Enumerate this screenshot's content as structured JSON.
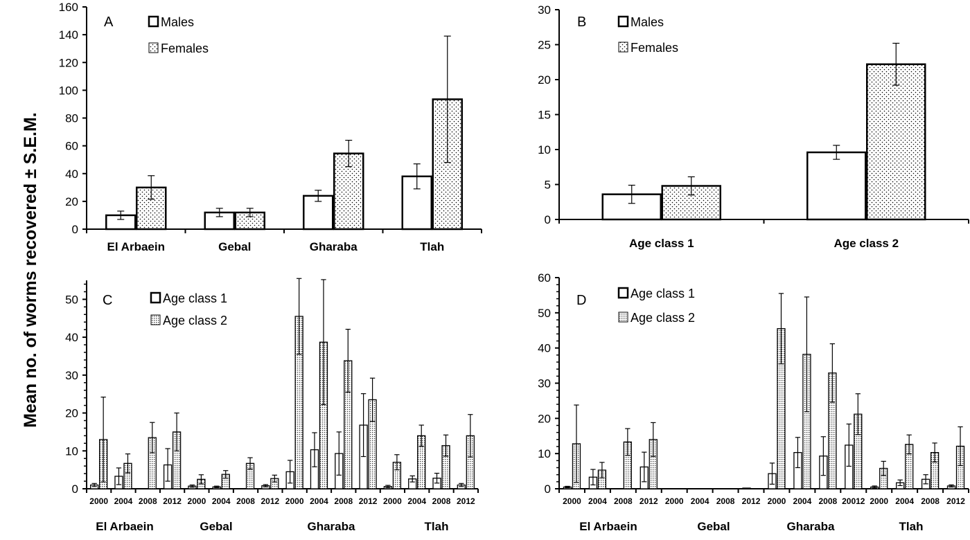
{
  "y_axis_title": "Mean no. of worms recovered ± S.E.M.",
  "chart_data": [
    {
      "panel": "A",
      "type": "bar",
      "ylim": [
        0,
        160
      ],
      "yticks": [
        0,
        20,
        40,
        60,
        80,
        100,
        120,
        140,
        160
      ],
      "categories": [
        "El Arbaein",
        "Gebal",
        "Gharaba",
        "Tlah"
      ],
      "series": [
        {
          "name": "Males",
          "pattern": "empty",
          "values": [
            10,
            12,
            24,
            38
          ],
          "errors": [
            3,
            3,
            4,
            9
          ]
        },
        {
          "name": "Females",
          "pattern": "dots",
          "values": [
            30,
            12,
            54.5,
            93.5
          ],
          "errors": [
            8.5,
            3,
            9.5,
            45.5
          ]
        }
      ]
    },
    {
      "panel": "B",
      "type": "bar",
      "ylim": [
        0,
        30
      ],
      "yticks": [
        0,
        5,
        10,
        15,
        20,
        25,
        30
      ],
      "categories": [
        "Age class 1",
        "Age class 2"
      ],
      "series": [
        {
          "name": "Males",
          "pattern": "empty",
          "values": [
            3.6,
            9.6
          ],
          "errors": [
            1.3,
            1.0
          ]
        },
        {
          "name": "Females",
          "pattern": "dots",
          "values": [
            4.8,
            22.2
          ],
          "errors": [
            1.3,
            3.0
          ]
        }
      ]
    },
    {
      "panel": "C",
      "type": "bar",
      "ylim": [
        0,
        55
      ],
      "yticks": [
        0,
        10,
        20,
        30,
        40,
        50
      ],
      "groups": [
        "El Arbaein",
        "Gebal",
        "Gharaba",
        "Tlah"
      ],
      "categories": [
        "2000",
        "2004",
        "2008",
        "2012",
        "2000",
        "2004",
        "2008",
        "2012",
        "2000",
        "2004",
        "2008",
        "2012",
        "2000",
        "2004",
        "2008",
        "2012"
      ],
      "series": [
        {
          "name": "Age class 1",
          "pattern": "empty",
          "values": [
            1,
            3.3,
            0,
            6.3,
            0.7,
            0.5,
            0,
            0.8,
            4.5,
            10.3,
            9.3,
            16.8,
            0.6,
            2.6,
            2.8,
            1
          ],
          "errors": [
            0.4,
            2.2,
            0,
            4.3,
            0.3,
            0.2,
            0,
            0.3,
            3,
            4.5,
            5.7,
            8.3,
            0.3,
            0.8,
            1.3,
            0.4
          ]
        },
        {
          "name": "Age class 2",
          "pattern": "dense",
          "values": [
            13,
            6.7,
            13.5,
            15,
            2.5,
            3.8,
            6.7,
            2.7,
            45.5,
            38.7,
            33.8,
            23.5,
            7,
            14,
            11.4,
            14
          ],
          "errors": [
            11.2,
            2.5,
            4,
            5,
            1.2,
            1,
            1.5,
            0.9,
            10,
            16.5,
            8.3,
            5.7,
            2,
            2.8,
            2.8,
            5.6
          ]
        }
      ]
    },
    {
      "panel": "D",
      "type": "bar",
      "ylim": [
        0,
        60
      ],
      "yticks": [
        0,
        10,
        20,
        30,
        40,
        50,
        60
      ],
      "groups": [
        "El Arbaein",
        "Gebal",
        "Gharaba",
        "Tlah"
      ],
      "categories": [
        "2000",
        "2004",
        "2008",
        "2012",
        "2000",
        "2004",
        "2008",
        "2012",
        "2000",
        "2004",
        "2008",
        "20012",
        "2000",
        "2004",
        "2008",
        "2012"
      ],
      "series": [
        {
          "name": "Age class 1",
          "pattern": "empty",
          "values": [
            0.5,
            3.3,
            0,
            6.2,
            0,
            0,
            0,
            0.2,
            4.3,
            10.3,
            9.3,
            12.4,
            0.5,
            1.7,
            2.7,
            0.8
          ],
          "errors": [
            0.2,
            2.2,
            0,
            4.2,
            0,
            0,
            0,
            0,
            3,
            4.3,
            5.5,
            6,
            0.3,
            0.8,
            1.3,
            0.3
          ]
        },
        {
          "name": "Age class 2",
          "pattern": "dense",
          "values": [
            12.8,
            5.3,
            13.3,
            14,
            0,
            0,
            0,
            0,
            45.5,
            38.2,
            32.9,
            21.2,
            5.8,
            12.6,
            10.3,
            12.1
          ],
          "errors": [
            11,
            2.2,
            3.8,
            4.8,
            0,
            0,
            0,
            0,
            10,
            16.3,
            8.3,
            5.8,
            2,
            2.7,
            2.7,
            5.5
          ]
        }
      ]
    }
  ]
}
